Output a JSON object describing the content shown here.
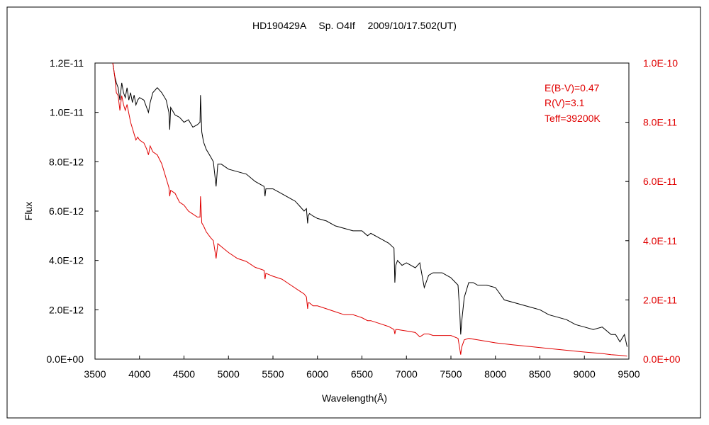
{
  "chart_data": {
    "type": "line",
    "title": "HD190429A　 Sp. O4If　 2009/10/17.502(UT)",
    "xlabel": "Wavelength(Å)",
    "ylabel": "Flux",
    "y2label": "",
    "xlim": [
      3500,
      9500
    ],
    "ylim": [
      0,
      1.2e-11
    ],
    "y2lim": [
      0,
      1e-10
    ],
    "grid": false,
    "x_ticks": [
      3500,
      4000,
      4500,
      5000,
      5500,
      6000,
      6500,
      7000,
      7500,
      8000,
      8500,
      9000,
      9500
    ],
    "x_tick_labels": [
      "3500",
      "4000",
      "4500",
      "5000",
      "5500",
      "6000",
      "6500",
      "7000",
      "7500",
      "8000",
      "8500",
      "9000",
      "9500"
    ],
    "y_ticks": [
      0,
      2e-12,
      4e-12,
      6e-12,
      8e-12,
      1e-11,
      1.2e-11
    ],
    "y_tick_labels": [
      "0.0E+00",
      "2.0E-12",
      "4.0E-12",
      "6.0E-12",
      "8.0E-12",
      "1.0E-11",
      "1.2E-11"
    ],
    "y2_ticks": [
      0,
      2e-11,
      4e-11,
      6e-11,
      8e-11,
      1e-10
    ],
    "y2_tick_labels": [
      "0.0E+00",
      "2.0E-11",
      "4.0E-11",
      "6.0E-11",
      "8.0E-11",
      "1.0E-10"
    ],
    "annotations": [
      "E(B-V)=0.47",
      "R(V)=3.1",
      "Teff=39200K"
    ],
    "annotation_color": "#e00000",
    "series": [
      {
        "axis": "left",
        "color": "#000000",
        "x": [
          3700,
          3720,
          3740,
          3760,
          3780,
          3800,
          3820,
          3840,
          3860,
          3880,
          3900,
          3920,
          3940,
          3960,
          3980,
          4000,
          4050,
          4080,
          4101,
          4120,
          4150,
          4200,
          4250,
          4300,
          4330,
          4340,
          4350,
          4400,
          4450,
          4500,
          4550,
          4600,
          4650,
          4680,
          4686,
          4700,
          4720,
          4750,
          4800,
          4830,
          4861,
          4880,
          4920,
          5000,
          5100,
          5200,
          5300,
          5400,
          5411,
          5420,
          5500,
          5600,
          5650,
          5700,
          5750,
          5800,
          5850,
          5876,
          5890,
          5895,
          5910,
          5950,
          6000,
          6100,
          6200,
          6300,
          6400,
          6500,
          6563,
          6600,
          6700,
          6800,
          6860,
          6870,
          6880,
          6900,
          6950,
          7000,
          7100,
          7150,
          7200,
          7250,
          7300,
          7400,
          7500,
          7580,
          7600,
          7610,
          7620,
          7650,
          7700,
          7750,
          7800,
          7900,
          8000,
          8100,
          8200,
          8300,
          8400,
          8500,
          8600,
          8700,
          8800,
          8900,
          9000,
          9100,
          9200,
          9300,
          9350,
          9400,
          9450,
          9480
        ],
        "y": [
          1.22e-11,
          1.15e-11,
          1.12e-11,
          1.1e-11,
          1.05e-11,
          1.12e-11,
          1.08e-11,
          1.06e-11,
          1.1e-11,
          1.05e-11,
          1.08e-11,
          1.04e-11,
          1.07e-11,
          1.03e-11,
          1.05e-11,
          1.06e-11,
          1.05e-11,
          1.02e-11,
          1e-11,
          1.04e-11,
          1.08e-11,
          1.1e-11,
          1.08e-11,
          1.05e-11,
          1e-11,
          9.3e-12,
          1.02e-11,
          9.9e-12,
          9.8e-12,
          9.6e-12,
          9.7e-12,
          9.4e-12,
          9.5e-12,
          9.6e-12,
          1.07e-11,
          9.2e-12,
          8.8e-12,
          8.5e-12,
          8.2e-12,
          8e-12,
          7e-12,
          7.9e-12,
          7.9e-12,
          7.7e-12,
          7.6e-12,
          7.5e-12,
          7.2e-12,
          7e-12,
          6.6e-12,
          6.9e-12,
          6.9e-12,
          6.7e-12,
          6.6e-12,
          6.5e-12,
          6.4e-12,
          6.2e-12,
          6e-12,
          6.1e-12,
          5.5e-12,
          5.8e-12,
          5.9e-12,
          5.8e-12,
          5.7e-12,
          5.6e-12,
          5.4e-12,
          5.3e-12,
          5.2e-12,
          5.2e-12,
          5e-12,
          5.1e-12,
          4.9e-12,
          4.7e-12,
          4.5e-12,
          3.1e-12,
          3.8e-12,
          4e-12,
          3.8e-12,
          3.9e-12,
          3.7e-12,
          3.9e-12,
          2.9e-12,
          3.4e-12,
          3.5e-12,
          3.5e-12,
          3.3e-12,
          3e-12,
          1.9e-12,
          1e-12,
          1.5e-12,
          2.5e-12,
          3.1e-12,
          3.1e-12,
          3e-12,
          3e-12,
          2.9e-12,
          2.4e-12,
          2.3e-12,
          2.2e-12,
          2.1e-12,
          2e-12,
          1.8e-12,
          1.7e-12,
          1.6e-12,
          1.4e-12,
          1.3e-12,
          1.2e-12,
          1.3e-12,
          1e-12,
          1e-12,
          7e-13,
          1e-12,
          5e-13
        ]
      },
      {
        "axis": "right",
        "color": "#e00000",
        "x": [
          3700,
          3720,
          3740,
          3760,
          3780,
          3800,
          3820,
          3840,
          3860,
          3880,
          3900,
          3920,
          3940,
          3960,
          3980,
          4000,
          4050,
          4080,
          4101,
          4120,
          4150,
          4200,
          4250,
          4300,
          4330,
          4340,
          4350,
          4400,
          4450,
          4500,
          4550,
          4600,
          4650,
          4680,
          4686,
          4700,
          4720,
          4750,
          4800,
          4830,
          4861,
          4880,
          4920,
          5000,
          5100,
          5200,
          5300,
          5400,
          5411,
          5420,
          5500,
          5600,
          5700,
          5800,
          5850,
          5876,
          5890,
          5895,
          5910,
          5950,
          6000,
          6100,
          6200,
          6300,
          6400,
          6500,
          6563,
          6600,
          6700,
          6800,
          6860,
          6870,
          6880,
          6900,
          7000,
          7100,
          7150,
          7200,
          7250,
          7300,
          7400,
          7500,
          7580,
          7600,
          7610,
          7620,
          7650,
          7700,
          7800,
          8000,
          8200,
          8400,
          8600,
          8800,
          9000,
          9200,
          9300,
          9400,
          9480
        ],
        "y": [
          1e-10,
          9.6e-11,
          9e-11,
          8.9e-11,
          8.4e-11,
          8.9e-11,
          8.6e-11,
          8.4e-11,
          8.6e-11,
          8.3e-11,
          8e-11,
          7.8e-11,
          7.6e-11,
          7.4e-11,
          7.5e-11,
          7.4e-11,
          7.3e-11,
          7.1e-11,
          6.9e-11,
          7.2e-11,
          7e-11,
          6.9e-11,
          6.6e-11,
          6.1e-11,
          5.8e-11,
          5.5e-11,
          5.7e-11,
          5.6e-11,
          5.3e-11,
          5.2e-11,
          5e-11,
          4.9e-11,
          4.8e-11,
          4.8e-11,
          5.5e-11,
          4.6e-11,
          4.5e-11,
          4.3e-11,
          4.1e-11,
          4e-11,
          3.4e-11,
          3.9e-11,
          3.8e-11,
          3.6e-11,
          3.4e-11,
          3.3e-11,
          3.1e-11,
          3e-11,
          2.7e-11,
          2.9e-11,
          2.8e-11,
          2.7e-11,
          2.5e-11,
          2.3e-11,
          2.2e-11,
          2.1e-11,
          1.7e-11,
          1.9e-11,
          1.9e-11,
          1.8e-11,
          1.8e-11,
          1.7e-11,
          1.6e-11,
          1.5e-11,
          1.5e-11,
          1.4e-11,
          1.3e-11,
          1.3e-11,
          1.2e-11,
          1.1e-11,
          1e-11,
          8.5e-12,
          1e-11,
          1e-11,
          9.5e-12,
          9e-12,
          7.5e-12,
          8.5e-12,
          8.5e-12,
          8e-12,
          8e-12,
          8e-12,
          7e-12,
          3.5e-12,
          1.5e-12,
          4e-12,
          6.5e-12,
          7e-12,
          6.5e-12,
          5.5e-12,
          4.8e-12,
          4.2e-12,
          3.6e-12,
          3e-12,
          2.4e-12,
          1.9e-12,
          1.5e-12,
          1.3e-12,
          1e-12
        ]
      }
    ]
  }
}
